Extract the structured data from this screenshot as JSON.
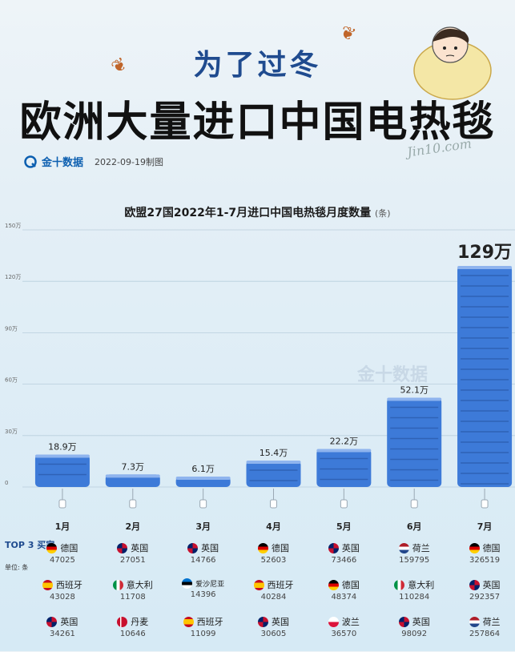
{
  "header": {
    "title_small": "为了过冬",
    "title_big": "欧洲大量进口中国电热毯",
    "brand": "金十数据",
    "date": "2022-09-19制图",
    "signature": "Jin10.com"
  },
  "chart_data": {
    "type": "bar",
    "title": "欧盟27国2022年1-7月进口中国电热毯月度数量",
    "unit_label": "(条)",
    "categories": [
      "1月",
      "2月",
      "3月",
      "4月",
      "5月",
      "6月",
      "7月"
    ],
    "values": [
      189000,
      73000,
      61000,
      154000,
      222000,
      521000,
      1290000
    ],
    "data_labels": [
      "18.9万",
      "7.3万",
      "6.1万",
      "15.4万",
      "22.2万",
      "52.1万",
      "129万"
    ],
    "ylim": [
      0,
      1500000
    ],
    "yticks": [
      {
        "value": 0,
        "label": "0"
      },
      {
        "value": 300000,
        "label": "30万"
      },
      {
        "value": 600000,
        "label": "60万"
      },
      {
        "value": 900000,
        "label": "90万"
      },
      {
        "value": 1200000,
        "label": "120万"
      },
      {
        "value": 1500000,
        "label": "150万"
      }
    ],
    "grid": true,
    "watermark": "金十数据",
    "bar_color": "#3d7ad8"
  },
  "buyers": {
    "label": "TOP 3 买家",
    "unit": "单位: 条",
    "months": [
      [
        {
          "country": "德国",
          "value": "47025",
          "flag": "de"
        },
        {
          "country": "西班牙",
          "value": "43028",
          "flag": "es"
        },
        {
          "country": "英国",
          "value": "34261",
          "flag": "uk"
        }
      ],
      [
        {
          "country": "英国",
          "value": "27051",
          "flag": "uk"
        },
        {
          "country": "意大利",
          "value": "11708",
          "flag": "it"
        },
        {
          "country": "丹麦",
          "value": "10646",
          "flag": "dk"
        }
      ],
      [
        {
          "country": "英国",
          "value": "14766",
          "flag": "uk"
        },
        {
          "country": "爱沙尼亚",
          "value": "14396",
          "flag": "ee"
        },
        {
          "country": "西班牙",
          "value": "11099",
          "flag": "es"
        }
      ],
      [
        {
          "country": "德国",
          "value": "52603",
          "flag": "de"
        },
        {
          "country": "西班牙",
          "value": "40284",
          "flag": "es"
        },
        {
          "country": "英国",
          "value": "30605",
          "flag": "uk"
        }
      ],
      [
        {
          "country": "英国",
          "value": "73466",
          "flag": "uk"
        },
        {
          "country": "德国",
          "value": "48374",
          "flag": "de"
        },
        {
          "country": "波兰",
          "value": "36570",
          "flag": "pl"
        }
      ],
      [
        {
          "country": "荷兰",
          "value": "159795",
          "flag": "nl"
        },
        {
          "country": "意大利",
          "value": "110284",
          "flag": "it"
        },
        {
          "country": "英国",
          "value": "98092",
          "flag": "uk"
        }
      ],
      [
        {
          "country": "德国",
          "value": "326519",
          "flag": "de"
        },
        {
          "country": "英国",
          "value": "292357",
          "flag": "uk"
        },
        {
          "country": "荷兰",
          "value": "257864",
          "flag": "nl"
        }
      ]
    ]
  }
}
